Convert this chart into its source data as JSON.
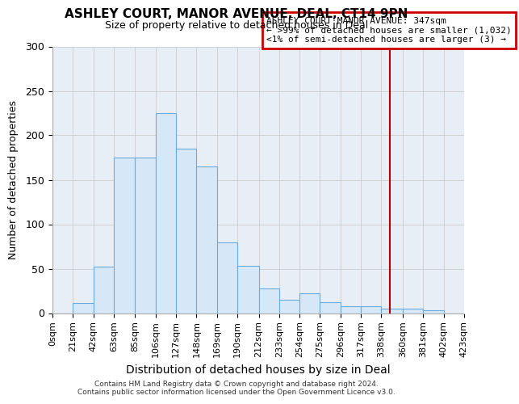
{
  "title": "ASHLEY COURT, MANOR AVENUE, DEAL, CT14 9PN",
  "subtitle": "Size of property relative to detached houses in Deal",
  "xlabel": "Distribution of detached houses by size in Deal",
  "ylabel": "Number of detached properties",
  "bin_edges": [
    0,
    21,
    42,
    63,
    85,
    106,
    127,
    148,
    169,
    190,
    212,
    233,
    254,
    275,
    296,
    317,
    338,
    360,
    381,
    402,
    423
  ],
  "bin_labels": [
    "0sqm",
    "21sqm",
    "42sqm",
    "63sqm",
    "85sqm",
    "106sqm",
    "127sqm",
    "148sqm",
    "169sqm",
    "190sqm",
    "212sqm",
    "233sqm",
    "254sqm",
    "275sqm",
    "296sqm",
    "317sqm",
    "338sqm",
    "360sqm",
    "381sqm",
    "402sqm",
    "423sqm"
  ],
  "bar_heights": [
    0,
    11,
    52,
    175,
    175,
    225,
    185,
    165,
    80,
    53,
    28,
    15,
    22,
    12,
    8,
    8,
    5,
    5,
    3,
    0
  ],
  "bar_color": "#d6e8f7",
  "bar_edge_color": "#6aabe0",
  "grid_color": "#cccccc",
  "vline_x": 347,
  "vline_color": "#aa0000",
  "annotation_title": "ASHLEY COURT MANOR AVENUE: 347sqm",
  "annotation_line1": "← >99% of detached houses are smaller (1,032)",
  "annotation_line2": "<1% of semi-detached houses are larger (3) →",
  "annotation_box_color": "#cc0000",
  "ylim": [
    0,
    300
  ],
  "footer_line1": "Contains HM Land Registry data © Crown copyright and database right 2024.",
  "footer_line2": "Contains public sector information licensed under the Open Government Licence v3.0.",
  "background_color": "#ffffff",
  "plot_bg_color": "#e8eef5"
}
